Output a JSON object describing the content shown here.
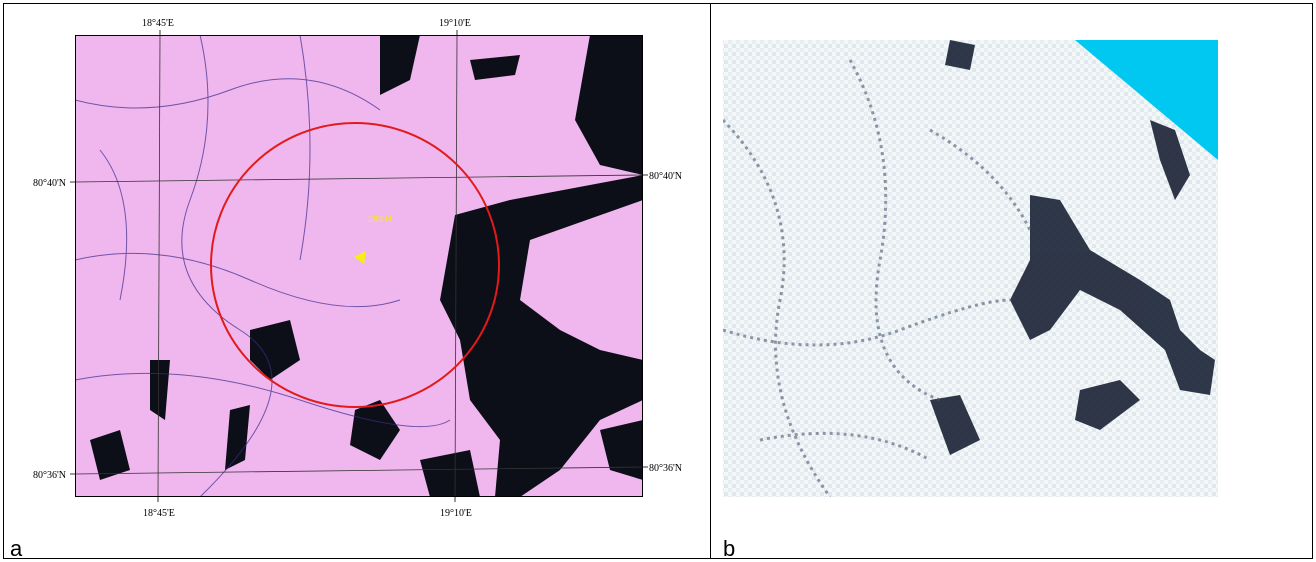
{
  "panel_a": {
    "label": "a",
    "top_lon_labels": [
      "18°45'E",
      "19°10'E"
    ],
    "bottom_lon_labels": [
      "18°45'E",
      "19°10'E"
    ],
    "left_lat_labels": [
      "80°40'N",
      "80°36'N"
    ],
    "right_lat_labels": [
      "80°40'N",
      "80°36'N"
    ],
    "annotation": "289 H"
  },
  "panel_b": {
    "label": "b"
  }
}
